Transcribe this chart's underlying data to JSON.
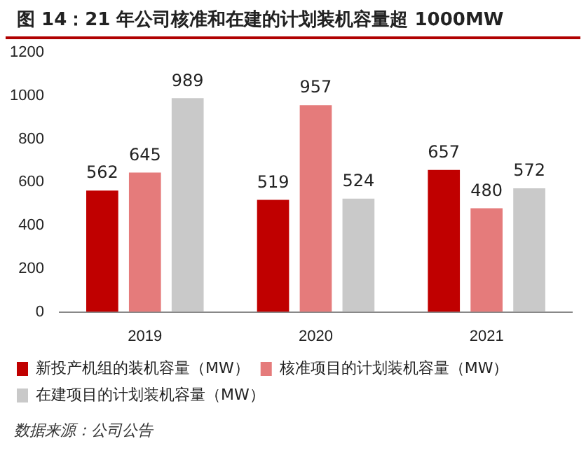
{
  "chart_data": {
    "type": "bar",
    "title": "图 14：21 年公司核准和在建的计划装机容量超 1000MW",
    "categories": [
      "2019",
      "2020",
      "2021"
    ],
    "series": [
      {
        "name": "新投产机组的装机容量（MW）",
        "color": "#c00000",
        "values": [
          562,
          519,
          657
        ]
      },
      {
        "name": "核准项目的计划装机容量（MW）",
        "color": "#e57b7b",
        "values": [
          645,
          957,
          480
        ]
      },
      {
        "name": "在建项目的计划装机容量（MW）",
        "color": "#c9c9c9",
        "values": [
          989,
          524,
          572
        ]
      }
    ],
    "ylim": [
      0,
      1200
    ],
    "yticks": [
      0,
      200,
      400,
      600,
      800,
      1000,
      1200
    ],
    "grid": false,
    "legend": "bottom",
    "data_labels": true,
    "annotations": [
      "数据来源：公司公告"
    ]
  }
}
